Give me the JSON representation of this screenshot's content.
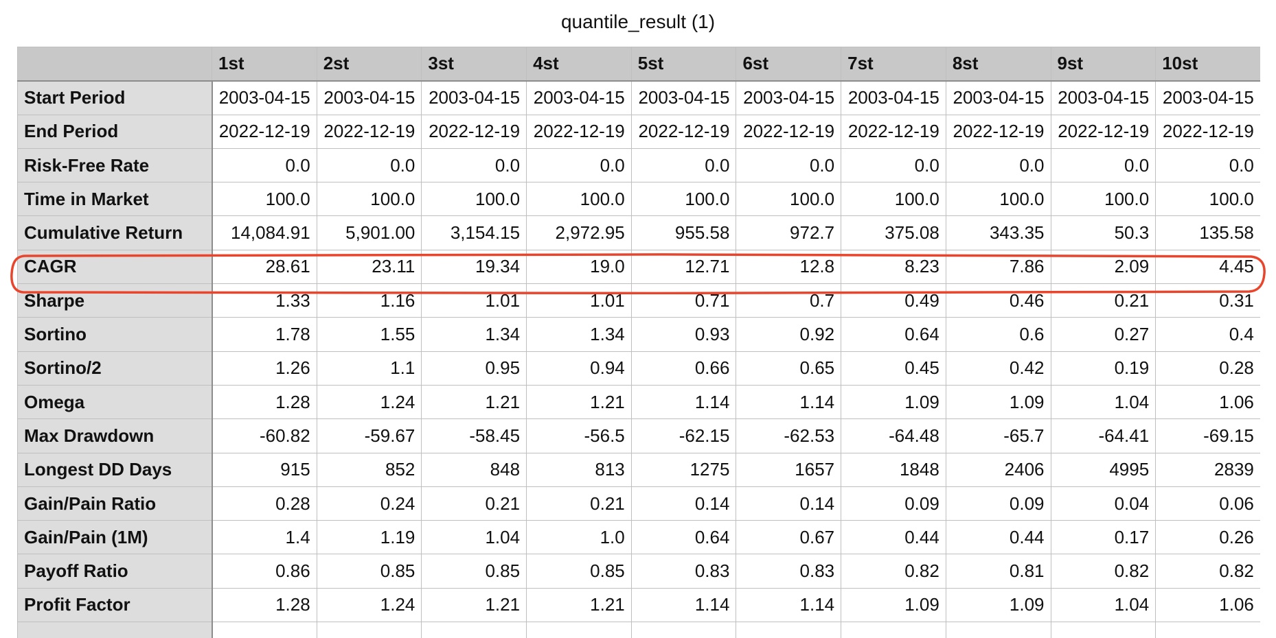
{
  "title": "quantile_result (1)",
  "columns": [
    "",
    "1st",
    "2st",
    "3st",
    "4st",
    "5st",
    "6st",
    "7st",
    "8st",
    "9st",
    "10st"
  ],
  "rows": [
    {
      "label": "Start Period",
      "values": [
        "2003-04-15",
        "2003-04-15",
        "2003-04-15",
        "2003-04-15",
        "2003-04-15",
        "2003-04-15",
        "2003-04-15",
        "2003-04-15",
        "2003-04-15",
        "2003-04-15"
      ]
    },
    {
      "label": "End Period",
      "values": [
        "2022-12-19",
        "2022-12-19",
        "2022-12-19",
        "2022-12-19",
        "2022-12-19",
        "2022-12-19",
        "2022-12-19",
        "2022-12-19",
        "2022-12-19",
        "2022-12-19"
      ]
    },
    {
      "label": "Risk-Free Rate",
      "values": [
        "0.0",
        "0.0",
        "0.0",
        "0.0",
        "0.0",
        "0.0",
        "0.0",
        "0.0",
        "0.0",
        "0.0"
      ]
    },
    {
      "label": "Time in Market",
      "values": [
        "100.0",
        "100.0",
        "100.0",
        "100.0",
        "100.0",
        "100.0",
        "100.0",
        "100.0",
        "100.0",
        "100.0"
      ]
    },
    {
      "label": "Cumulative Return",
      "values": [
        "14,084.91",
        "5,901.00",
        "3,154.15",
        "2,972.95",
        "955.58",
        "972.7",
        "375.08",
        "343.35",
        "50.3",
        "135.58"
      ]
    },
    {
      "label": "CAGR",
      "values": [
        "28.61",
        "23.11",
        "19.34",
        "19.0",
        "12.71",
        "12.8",
        "8.23",
        "7.86",
        "2.09",
        "4.45"
      ]
    },
    {
      "label": "Sharpe",
      "values": [
        "1.33",
        "1.16",
        "1.01",
        "1.01",
        "0.71",
        "0.7",
        "0.49",
        "0.46",
        "0.21",
        "0.31"
      ]
    },
    {
      "label": "Sortino",
      "values": [
        "1.78",
        "1.55",
        "1.34",
        "1.34",
        "0.93",
        "0.92",
        "0.64",
        "0.6",
        "0.27",
        "0.4"
      ]
    },
    {
      "label": "Sortino/2",
      "values": [
        "1.26",
        "1.1",
        "0.95",
        "0.94",
        "0.66",
        "0.65",
        "0.45",
        "0.42",
        "0.19",
        "0.28"
      ]
    },
    {
      "label": "Omega",
      "values": [
        "1.28",
        "1.24",
        "1.21",
        "1.21",
        "1.14",
        "1.14",
        "1.09",
        "1.09",
        "1.04",
        "1.06"
      ]
    },
    {
      "label": "Max Drawdown",
      "values": [
        "-60.82",
        "-59.67",
        "-58.45",
        "-56.5",
        "-62.15",
        "-62.53",
        "-64.48",
        "-65.7",
        "-64.41",
        "-69.15"
      ]
    },
    {
      "label": "Longest DD Days",
      "values": [
        "915",
        "852",
        "848",
        "813",
        "1275",
        "1657",
        "1848",
        "2406",
        "4995",
        "2839"
      ]
    },
    {
      "label": "Gain/Pain Ratio",
      "values": [
        "0.28",
        "0.24",
        "0.21",
        "0.21",
        "0.14",
        "0.14",
        "0.09",
        "0.09",
        "0.04",
        "0.06"
      ]
    },
    {
      "label": "Gain/Pain (1M)",
      "values": [
        "1.4",
        "1.19",
        "1.04",
        "1.0",
        "0.64",
        "0.67",
        "0.44",
        "0.44",
        "0.17",
        "0.26"
      ]
    },
    {
      "label": "Payoff Ratio",
      "values": [
        "0.86",
        "0.85",
        "0.85",
        "0.85",
        "0.83",
        "0.83",
        "0.82",
        "0.81",
        "0.82",
        "0.82"
      ]
    },
    {
      "label": "Profit Factor",
      "values": [
        "1.28",
        "1.24",
        "1.21",
        "1.21",
        "1.14",
        "1.14",
        "1.09",
        "1.09",
        "1.04",
        "1.06"
      ]
    },
    {
      "label": "",
      "values": [
        "",
        "",
        "",
        "",
        "",
        "",
        "",
        "",
        "",
        ""
      ]
    }
  ],
  "highlighted_row": "CAGR",
  "colors": {
    "header_bg": "#c8c8c8",
    "label_bg": "#dddddd",
    "grid": "#bfbfbf",
    "annotation": "#e8452c"
  }
}
